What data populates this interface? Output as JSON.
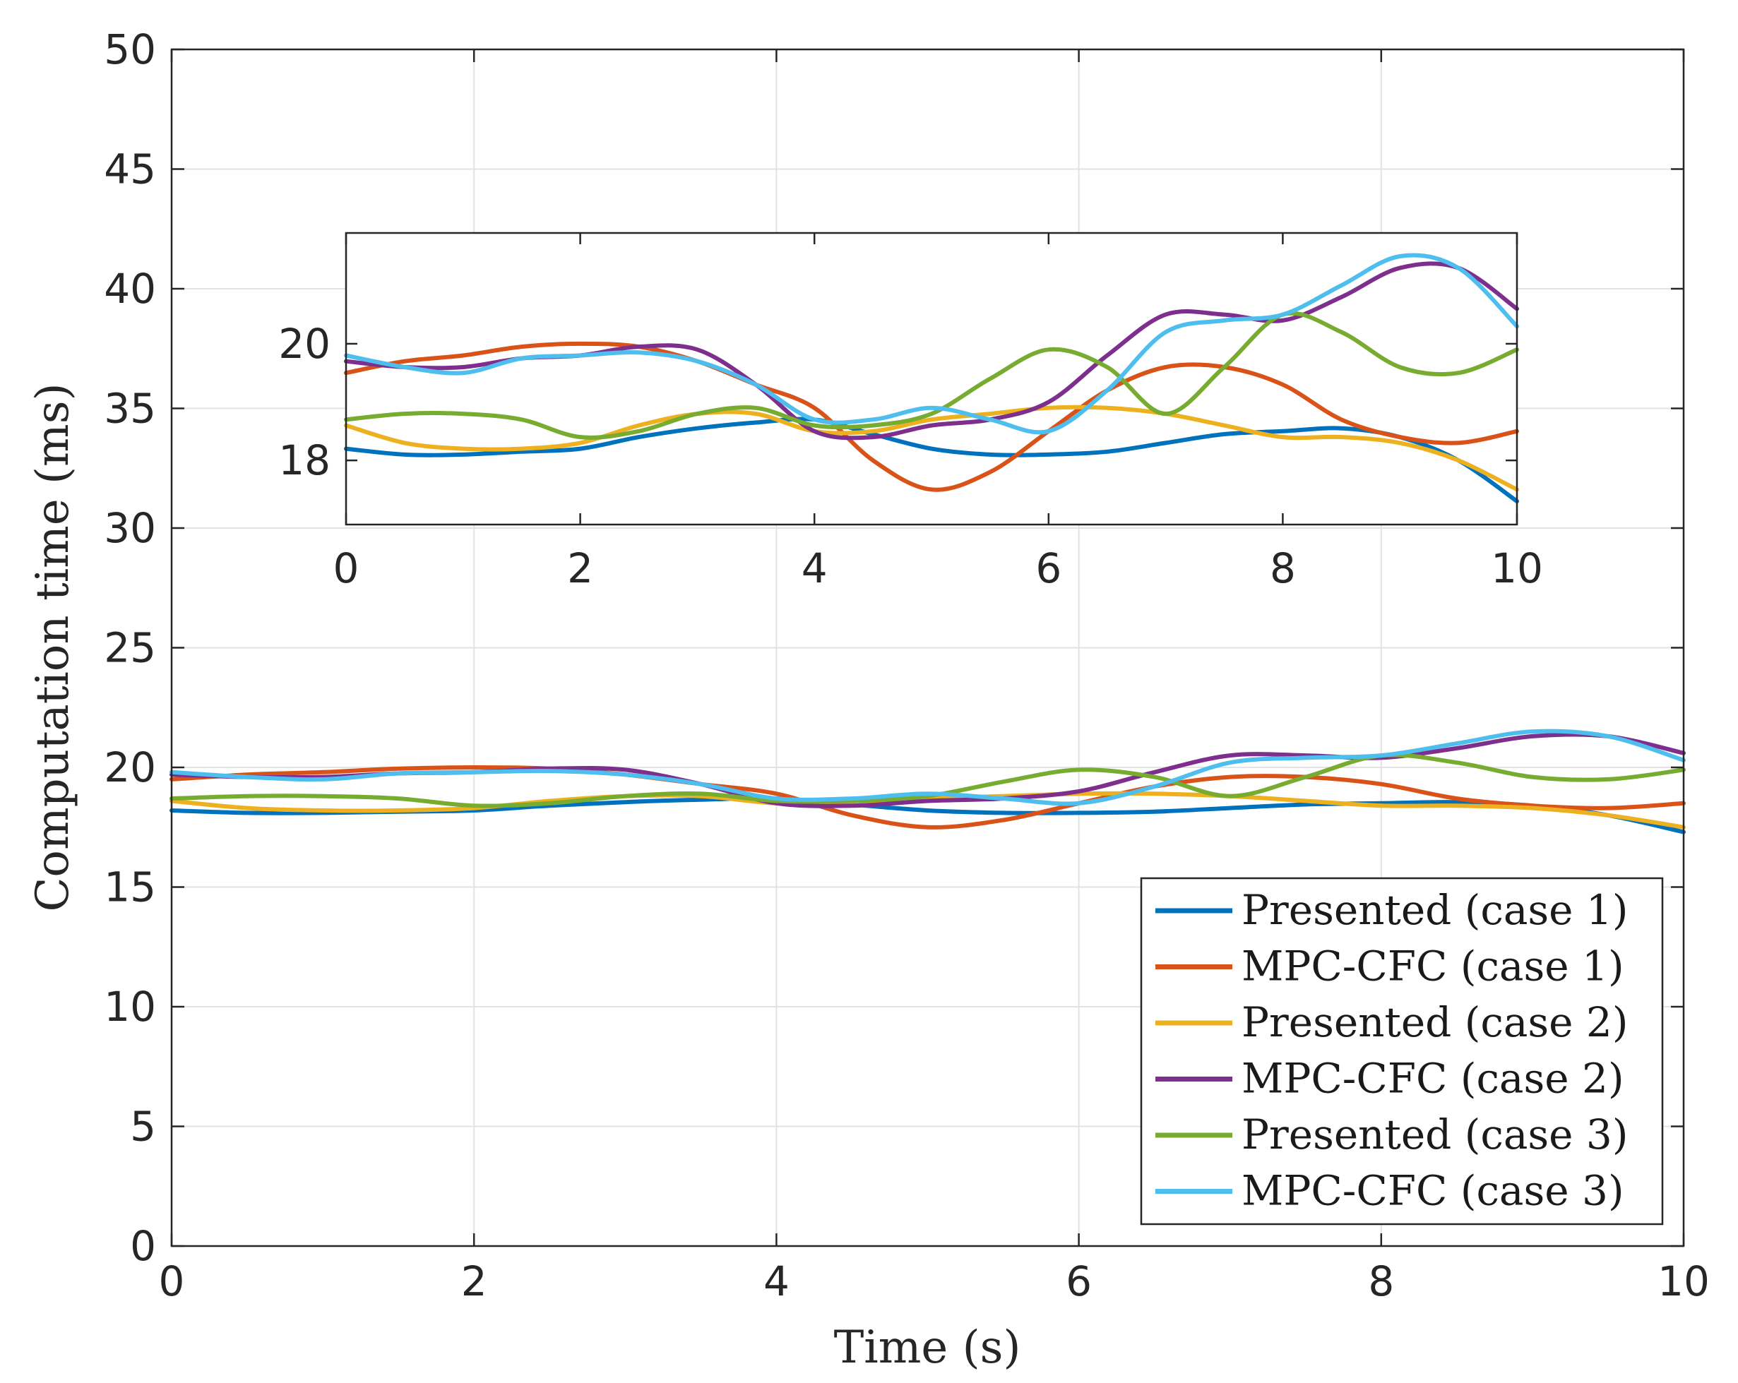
{
  "chart_data": {
    "type": "line",
    "xlabel": "Time (s)",
    "ylabel": "Computation time (ms)",
    "xlim": [
      0,
      10
    ],
    "ylim": [
      0,
      50
    ],
    "xticks": [
      "0",
      "2",
      "4",
      "6",
      "8",
      "10"
    ],
    "yticks": [
      "0",
      "5",
      "10",
      "15",
      "20",
      "25",
      "30",
      "35",
      "40",
      "45",
      "50"
    ],
    "grid": true,
    "legend_position": "bottom-right",
    "x": [
      0,
      0.5,
      1,
      1.5,
      2,
      2.5,
      3,
      3.5,
      4,
      4.5,
      5,
      5.5,
      6,
      6.5,
      7,
      7.5,
      8,
      8.5,
      9,
      9.5,
      10
    ],
    "series": [
      {
        "name": "Presented (case 1)",
        "color": "#0072BD",
        "values": [
          18.2,
          18.1,
          18.1,
          18.15,
          18.2,
          18.4,
          18.55,
          18.65,
          18.7,
          18.45,
          18.2,
          18.1,
          18.1,
          18.15,
          18.3,
          18.45,
          18.5,
          18.55,
          18.4,
          18.0,
          17.3
        ]
      },
      {
        "name": "MPC-CFC (case 1)",
        "color": "#D95319",
        "values": [
          19.5,
          19.7,
          19.8,
          19.95,
          20.0,
          19.95,
          19.7,
          19.3,
          18.9,
          18.0,
          17.5,
          17.8,
          18.5,
          19.2,
          19.6,
          19.6,
          19.3,
          18.7,
          18.4,
          18.3,
          18.5
        ]
      },
      {
        "name": "Presented (case 2)",
        "color": "#EDB120",
        "values": [
          18.6,
          18.3,
          18.2,
          18.2,
          18.3,
          18.6,
          18.8,
          18.8,
          18.5,
          18.5,
          18.7,
          18.8,
          18.9,
          18.9,
          18.8,
          18.6,
          18.4,
          18.4,
          18.3,
          18.0,
          17.5
        ]
      },
      {
        "name": "MPC-CFC (case 2)",
        "color": "#7E2F8E",
        "values": [
          19.7,
          19.6,
          19.6,
          19.75,
          19.8,
          19.95,
          19.9,
          19.3,
          18.5,
          18.4,
          18.6,
          18.7,
          19.0,
          19.8,
          20.5,
          20.5,
          20.4,
          20.8,
          21.3,
          21.3,
          20.6
        ]
      },
      {
        "name": "Presented (case 3)",
        "color": "#77AC30",
        "values": [
          18.7,
          18.8,
          18.8,
          18.7,
          18.4,
          18.5,
          18.8,
          18.9,
          18.6,
          18.6,
          18.8,
          19.4,
          19.9,
          19.6,
          18.8,
          19.6,
          20.5,
          20.2,
          19.6,
          19.5,
          19.9
        ]
      },
      {
        "name": "MPC-CFC (case 3)",
        "color": "#4DBEEE",
        "values": [
          19.8,
          19.6,
          19.5,
          19.75,
          19.8,
          19.85,
          19.7,
          19.3,
          18.7,
          18.7,
          18.9,
          18.7,
          18.5,
          19.2,
          20.2,
          20.4,
          20.5,
          21.0,
          21.5,
          21.3,
          20.3
        ]
      }
    ],
    "inset": {
      "xlim": [
        0,
        10
      ],
      "ylim": [
        16.9,
        21.9
      ],
      "xticks": [
        "0",
        "2",
        "4",
        "6",
        "8",
        "10"
      ],
      "yticks": [
        "18",
        "20"
      ],
      "grid": false
    }
  }
}
